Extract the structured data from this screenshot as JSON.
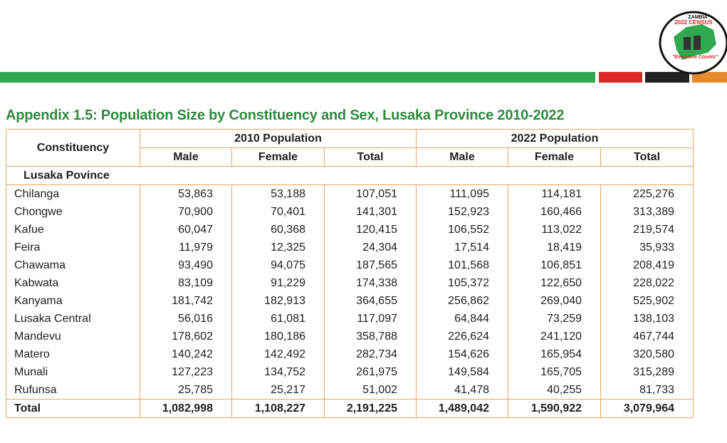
{
  "logo": {
    "line1": "ZAMBIA",
    "line2": "2022 CENSUS",
    "tagline": "\"Everyone Counts\""
  },
  "title": "Appendix 1.5: Population Size by Constituency and Sex, Lusaka Province 2010-2022",
  "table": {
    "header": {
      "constituency": "Constituency",
      "groups": [
        "2010 Population",
        "2022 Population"
      ],
      "columns": [
        "Male",
        "Female",
        "Total",
        "Male",
        "Female",
        "Total"
      ]
    },
    "section": "Lusaka Povince",
    "rows": [
      [
        "Chilanga",
        "53,863",
        "53,188",
        "107,051",
        "111,095",
        "114,181",
        "225,276"
      ],
      [
        "Chongwe",
        "70,900",
        "70,401",
        "141,301",
        "152,923",
        "160,466",
        "313,389"
      ],
      [
        "Kafue",
        "60,047",
        "60,368",
        "120,415",
        "106,552",
        "113,022",
        "219,574"
      ],
      [
        "Feira",
        "11,979",
        "12,325",
        "24,304",
        "17,514",
        "18,419",
        "35,933"
      ],
      [
        "Chawama",
        "93,490",
        "94,075",
        "187,565",
        "101,568",
        "106,851",
        "208,419"
      ],
      [
        "Kabwata",
        "83,109",
        "91,229",
        "174,338",
        "105,372",
        "122,650",
        "228,022"
      ],
      [
        "Kanyama",
        "181,742",
        "182,913",
        "364,655",
        "256,862",
        "269,040",
        "525,902"
      ],
      [
        "Lusaka Central",
        "56,016",
        "61,081",
        "117,097",
        "64,844",
        "73,259",
        "138,103"
      ],
      [
        "Mandevu",
        "178,602",
        "180,186",
        "358,788",
        "226,624",
        "241,120",
        "467,744"
      ],
      [
        "Matero",
        "140,242",
        "142,492",
        "282,734",
        "154,626",
        "165,954",
        "320,580"
      ],
      [
        "Munali",
        "127,223",
        "134,752",
        "261,975",
        "149,584",
        "165,705",
        "315,289"
      ],
      [
        "Rufunsa",
        "25,785",
        "25,217",
        "51,002",
        "41,478",
        "40,255",
        "81,733"
      ]
    ],
    "total": [
      "Total",
      "1,082,998",
      "1,108,227",
      "2,191,225",
      "1,489,042",
      "1,590,922",
      "3,079,964"
    ]
  }
}
